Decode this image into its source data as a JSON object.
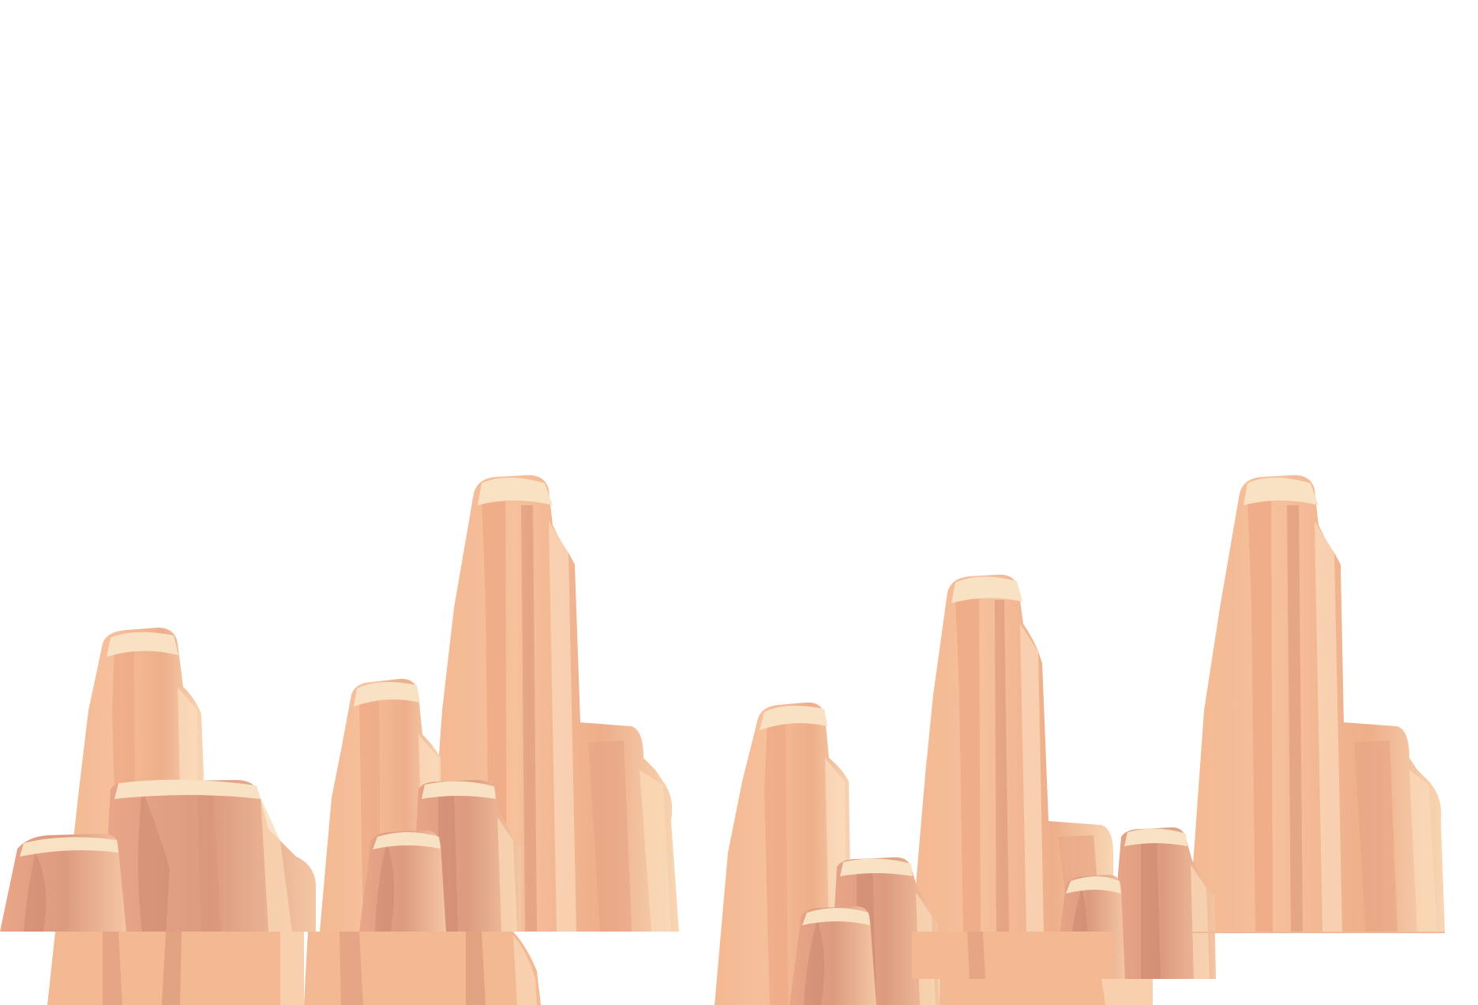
{
  "scene": {
    "background_color": "#ffffff",
    "palette": {
      "rock_base": "#f5bd97",
      "rock_mid": "#eaa987",
      "rock_shadow": "#d99479",
      "rock_deep": "#c9826c",
      "rock_highlight": "#fbdcbd",
      "rock_cap": "#f9e1c4"
    },
    "sprites": [
      {
        "kind": "rock-spire",
        "group": "left-cluster"
      },
      {
        "kind": "rock-spire",
        "group": "left-cluster"
      },
      {
        "kind": "rock-spire",
        "group": "left-cluster"
      },
      {
        "kind": "rock-ledge",
        "group": "left-cluster"
      },
      {
        "kind": "rock-boulder",
        "group": "left-cluster"
      },
      {
        "kind": "rock-ledge",
        "group": "left-cluster"
      },
      {
        "kind": "rock-boulder",
        "group": "left-cluster"
      },
      {
        "kind": "rock-spire",
        "group": "right-cluster"
      },
      {
        "kind": "rock-spire",
        "group": "right-cluster"
      },
      {
        "kind": "rock-spire",
        "group": "right-cluster"
      },
      {
        "kind": "rock-ledge",
        "group": "right-cluster"
      },
      {
        "kind": "rock-boulder",
        "group": "right-cluster"
      },
      {
        "kind": "rock-ledge",
        "group": "right-cluster"
      },
      {
        "kind": "rock-boulder",
        "group": "right-cluster"
      }
    ]
  }
}
